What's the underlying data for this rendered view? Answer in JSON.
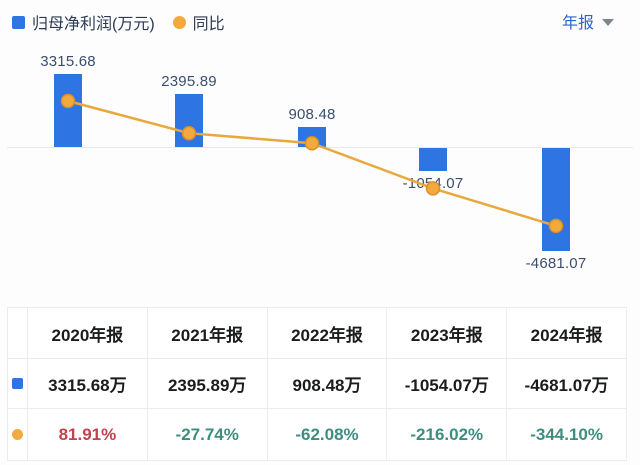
{
  "legend": {
    "series1": {
      "label": "归母净利润(万元)",
      "color": "#2E75E3"
    },
    "series2": {
      "label": "同比",
      "color": "#F3A93C"
    }
  },
  "period_selector": {
    "label": "年报"
  },
  "chart_data": {
    "type": "bar",
    "categories": [
      "2020年报",
      "2021年报",
      "2022年报",
      "2023年报",
      "2024年报"
    ],
    "series": [
      {
        "name": "归母净利润(万元)",
        "type": "bar",
        "values": [
          3315.68,
          2395.89,
          908.48,
          -1054.07,
          -4681.07
        ],
        "labels": [
          "3315.68",
          "2395.89",
          "908.48",
          "-1054.07",
          "-4681.07"
        ],
        "unit": "万元",
        "color": "#2E75E3"
      },
      {
        "name": "同比",
        "type": "line",
        "values": [
          81.91,
          -27.74,
          -62.08,
          -216.02,
          -344.1
        ],
        "unit": "%",
        "color": "#E9A83E",
        "marker_fill": "#F3A93C",
        "marker_stroke": "#D8912A"
      }
    ],
    "title": "",
    "xlabel": "",
    "ylabel": "归母净利润(万元)",
    "label_color": "#3C4E6E",
    "legend_position": "top-left",
    "grid": false,
    "zero_baseline": true
  },
  "table": {
    "headers": [
      "2020年报",
      "2021年报",
      "2022年报",
      "2023年报",
      "2024年报"
    ],
    "rows": [
      {
        "icon": "blue-square",
        "cells": [
          "3315.68万",
          "2395.89万",
          "908.48万",
          "-1054.07万",
          "-4681.07万"
        ]
      },
      {
        "icon": "yellow-circle",
        "cells": [
          "81.91%",
          "-27.74%",
          "-62.08%",
          "-216.02%",
          "-344.10%"
        ],
        "cell_colors": [
          "#C2424E",
          "#3E8E80",
          "#3E8E80",
          "#3E8E80",
          "#3E8E80"
        ]
      }
    ]
  }
}
